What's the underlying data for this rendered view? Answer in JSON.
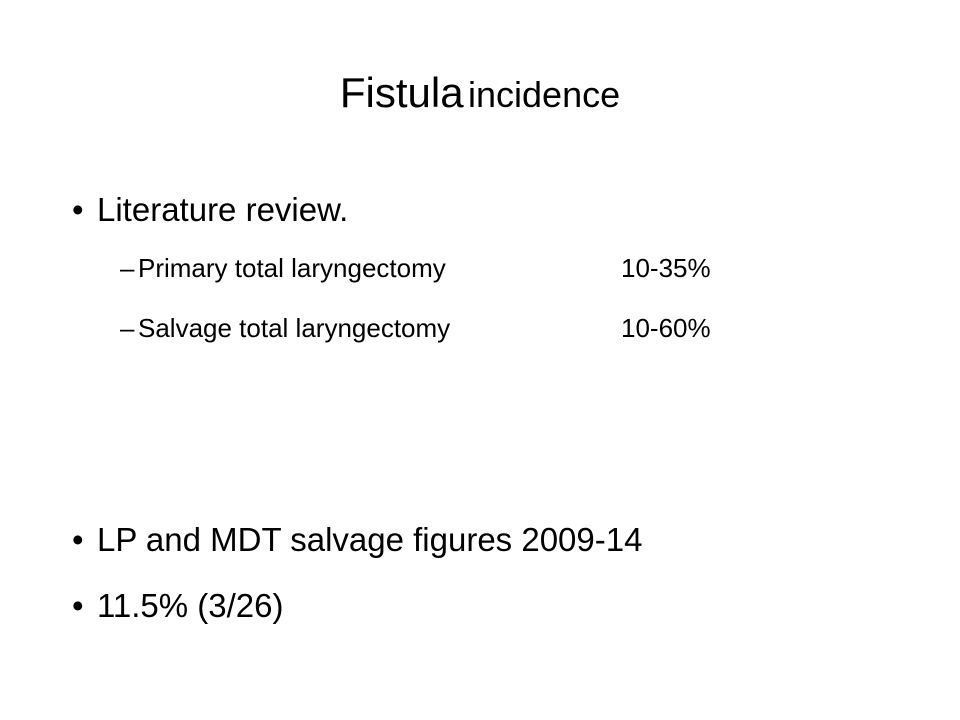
{
  "title": {
    "first": "Fistula",
    "second": "incidence"
  },
  "bullets": [
    {
      "text": "Literature review.",
      "items": [
        {
          "label": "Primary total laryngectomy",
          "value": "10-35%"
        },
        {
          "label": "Salvage total laryngectomy",
          "value": "10-60%"
        }
      ]
    },
    {
      "text": "LP and MDT salvage figures 2009-14"
    },
    {
      "text": "11.5% (3/26)"
    }
  ]
}
